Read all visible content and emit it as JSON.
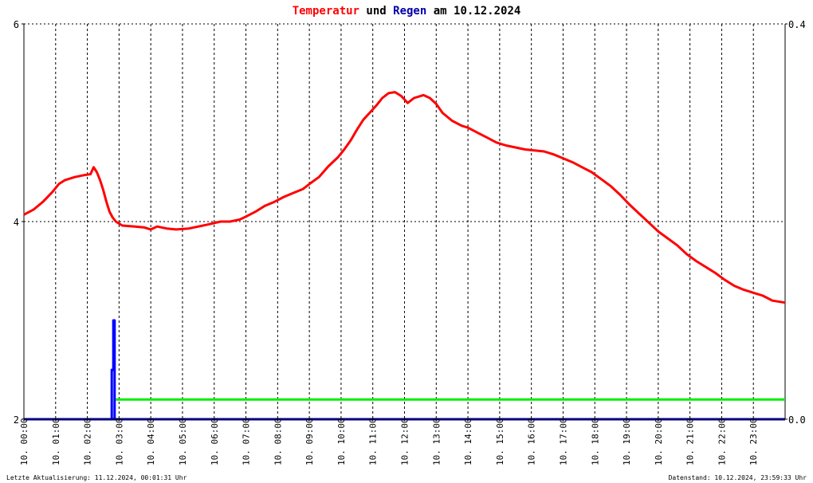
{
  "chart_data": {
    "type": "line",
    "title": {
      "parts": [
        {
          "text": "Temperatur",
          "color": "#ff0000"
        },
        {
          "text": " und ",
          "color": "#000000"
        },
        {
          "text": "Regen",
          "color": "#0000aa"
        },
        {
          "text": " am 10.12.2024",
          "color": "#000000"
        }
      ]
    },
    "x_labels": [
      "10. 00:00",
      "10. 01:00",
      "10. 02:00",
      "10. 03:00",
      "10. 04:00",
      "10. 05:00",
      "10. 06:00",
      "10. 07:00",
      "10. 08:00",
      "10. 09:00",
      "10. 10:00",
      "10. 11:00",
      "10. 12:00",
      "10. 13:00",
      "10. 14:00",
      "10. 15:00",
      "10. 16:00",
      "10. 17:00",
      "10. 18:00",
      "10. 19:00",
      "10. 20:00",
      "10. 21:00",
      "10. 22:00",
      "10. 23:00"
    ],
    "x_range_hours": [
      0,
      24
    ],
    "y_left": {
      "ticks": [
        "6",
        "4",
        "2"
      ],
      "range": [
        2,
        6
      ]
    },
    "y_right": {
      "ticks": [
        "0.4",
        "0.0"
      ],
      "range": [
        0,
        0.4
      ]
    },
    "grid": true,
    "series": [
      {
        "color": "#ff0000",
        "axis": "left",
        "points": [
          [
            0.0,
            4.07
          ],
          [
            0.3,
            4.12
          ],
          [
            0.6,
            4.2
          ],
          [
            0.9,
            4.3
          ],
          [
            1.1,
            4.38
          ],
          [
            1.3,
            4.42
          ],
          [
            1.6,
            4.45
          ],
          [
            1.9,
            4.47
          ],
          [
            2.1,
            4.48
          ],
          [
            2.2,
            4.55
          ],
          [
            2.3,
            4.5
          ],
          [
            2.4,
            4.42
          ],
          [
            2.5,
            4.32
          ],
          [
            2.6,
            4.2
          ],
          [
            2.7,
            4.1
          ],
          [
            2.8,
            4.04
          ],
          [
            2.9,
            4.0
          ],
          [
            3.1,
            3.96
          ],
          [
            3.5,
            3.95
          ],
          [
            3.8,
            3.94
          ],
          [
            4.0,
            3.92
          ],
          [
            4.2,
            3.95
          ],
          [
            4.5,
            3.93
          ],
          [
            4.8,
            3.92
          ],
          [
            5.2,
            3.93
          ],
          [
            5.5,
            3.95
          ],
          [
            5.8,
            3.97
          ],
          [
            6.2,
            4.0
          ],
          [
            6.5,
            4.0
          ],
          [
            6.8,
            4.02
          ],
          [
            7.0,
            4.05
          ],
          [
            7.3,
            4.1
          ],
          [
            7.6,
            4.16
          ],
          [
            7.9,
            4.2
          ],
          [
            8.2,
            4.25
          ],
          [
            8.5,
            4.29
          ],
          [
            8.8,
            4.33
          ],
          [
            9.0,
            4.38
          ],
          [
            9.3,
            4.45
          ],
          [
            9.6,
            4.56
          ],
          [
            9.9,
            4.65
          ],
          [
            10.1,
            4.73
          ],
          [
            10.3,
            4.82
          ],
          [
            10.5,
            4.93
          ],
          [
            10.7,
            5.03
          ],
          [
            10.9,
            5.1
          ],
          [
            11.1,
            5.17
          ],
          [
            11.3,
            5.25
          ],
          [
            11.5,
            5.3
          ],
          [
            11.7,
            5.31
          ],
          [
            11.9,
            5.27
          ],
          [
            12.1,
            5.2
          ],
          [
            12.3,
            5.25
          ],
          [
            12.6,
            5.28
          ],
          [
            12.8,
            5.25
          ],
          [
            13.0,
            5.19
          ],
          [
            13.2,
            5.1
          ],
          [
            13.5,
            5.02
          ],
          [
            13.8,
            4.97
          ],
          [
            14.0,
            4.95
          ],
          [
            14.3,
            4.9
          ],
          [
            14.6,
            4.85
          ],
          [
            14.9,
            4.8
          ],
          [
            15.2,
            4.77
          ],
          [
            15.5,
            4.75
          ],
          [
            15.8,
            4.73
          ],
          [
            16.1,
            4.72
          ],
          [
            16.4,
            4.71
          ],
          [
            16.7,
            4.68
          ],
          [
            17.0,
            4.64
          ],
          [
            17.3,
            4.6
          ],
          [
            17.6,
            4.55
          ],
          [
            17.9,
            4.5
          ],
          [
            18.2,
            4.43
          ],
          [
            18.5,
            4.36
          ],
          [
            18.8,
            4.27
          ],
          [
            19.1,
            4.17
          ],
          [
            19.4,
            4.08
          ],
          [
            19.7,
            3.99
          ],
          [
            20.0,
            3.9
          ],
          [
            20.3,
            3.83
          ],
          [
            20.6,
            3.76
          ],
          [
            20.9,
            3.67
          ],
          [
            21.2,
            3.6
          ],
          [
            21.5,
            3.54
          ],
          [
            21.8,
            3.48
          ],
          [
            22.1,
            3.41
          ],
          [
            22.4,
            3.35
          ],
          [
            22.7,
            3.31
          ],
          [
            23.0,
            3.28
          ],
          [
            23.3,
            3.25
          ],
          [
            23.6,
            3.2
          ],
          [
            24.0,
            3.18
          ]
        ]
      },
      {
        "color": "#0000ff",
        "axis": "right",
        "points": [
          [
            2.77,
            0.0
          ],
          [
            2.77,
            0.05
          ],
          [
            2.82,
            0.05
          ],
          [
            2.82,
            0.1
          ],
          [
            2.86,
            0.1
          ],
          [
            2.86,
            0.0
          ]
        ]
      },
      {
        "color": "#00ee00",
        "axis": "left",
        "points": [
          [
            2.9,
            2.2
          ],
          [
            24.0,
            2.2
          ]
        ]
      },
      {
        "color": "#000080",
        "axis": "left",
        "points": [
          [
            0.0,
            2.0
          ],
          [
            24.0,
            2.0
          ]
        ]
      }
    ]
  },
  "footer": {
    "left": "Letzte Aktualisierung: 11.12.2024, 00:01:31 Uhr",
    "right": "Datenstand: 10.12.2024, 23:59:33 Uhr"
  }
}
